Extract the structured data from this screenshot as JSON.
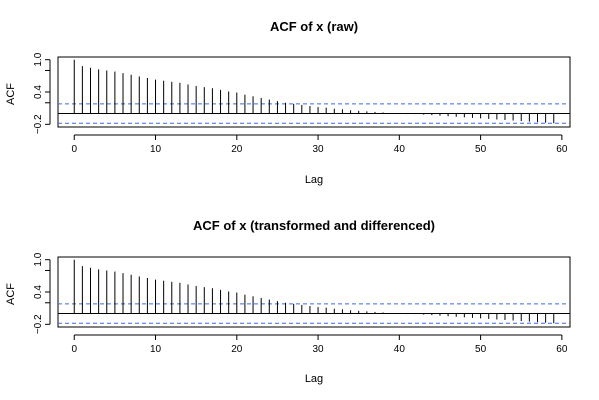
{
  "chart_data": [
    {
      "type": "bar",
      "title": "ACF of x (raw)",
      "xlabel": "Lag",
      "ylabel": "ACF",
      "xlim": [
        -2,
        61
      ],
      "ylim": [
        -0.25,
        1.05
      ],
      "x_ticks": [
        0,
        10,
        20,
        30,
        40,
        50,
        60
      ],
      "y_ticks": [
        -0.2,
        0.4,
        1.0
      ],
      "y_tick_labels": [
        "−0.2",
        "0.4",
        "1.0"
      ],
      "y_minor_ticks": [
        0.2,
        0.8
      ],
      "ci": 0.18,
      "ci_color": "#4169e1",
      "grid": false,
      "x": [
        0,
        1,
        2,
        3,
        4,
        5,
        6,
        7,
        8,
        9,
        10,
        11,
        12,
        13,
        14,
        15,
        16,
        17,
        18,
        19,
        20,
        21,
        22,
        23,
        24,
        25,
        26,
        27,
        28,
        29,
        30,
        31,
        32,
        33,
        34,
        35,
        36,
        37,
        38,
        39,
        40,
        41,
        42,
        43,
        44,
        45,
        46,
        47,
        48,
        49,
        50,
        51,
        52,
        53,
        54,
        55,
        56,
        57,
        58,
        59
      ],
      "values": [
        1.0,
        0.88,
        0.85,
        0.82,
        0.8,
        0.78,
        0.75,
        0.72,
        0.69,
        0.66,
        0.63,
        0.61,
        0.59,
        0.57,
        0.54,
        0.51,
        0.49,
        0.47,
        0.44,
        0.41,
        0.39,
        0.35,
        0.32,
        0.29,
        0.26,
        0.23,
        0.2,
        0.18,
        0.16,
        0.14,
        0.12,
        0.11,
        0.09,
        0.08,
        0.06,
        0.05,
        0.04,
        0.03,
        0.02,
        0.01,
        0.0,
        -0.01,
        -0.01,
        -0.02,
        -0.03,
        -0.04,
        -0.05,
        -0.06,
        -0.07,
        -0.08,
        -0.09,
        -0.1,
        -0.11,
        -0.12,
        -0.13,
        -0.14,
        -0.15,
        -0.16,
        -0.17,
        -0.18
      ]
    },
    {
      "type": "bar",
      "title": "ACF of x (transformed and differenced)",
      "xlabel": "Lag",
      "ylabel": "ACF",
      "xlim": [
        -2,
        61
      ],
      "ylim": [
        -0.25,
        1.05
      ],
      "x_ticks": [
        0,
        10,
        20,
        30,
        40,
        50,
        60
      ],
      "y_ticks": [
        -0.2,
        0.4,
        1.0
      ],
      "y_tick_labels": [
        "−0.2",
        "0.4",
        "1.0"
      ],
      "y_minor_ticks": [
        0.2,
        0.8
      ],
      "ci": 0.18,
      "ci_color": "#4169e1",
      "grid": false,
      "x": [
        0,
        1,
        2,
        3,
        4,
        5,
        6,
        7,
        8,
        9,
        10,
        11,
        12,
        13,
        14,
        15,
        16,
        17,
        18,
        19,
        20,
        21,
        22,
        23,
        24,
        25,
        26,
        27,
        28,
        29,
        30,
        31,
        32,
        33,
        34,
        35,
        36,
        37,
        38,
        39,
        40,
        41,
        42,
        43,
        44,
        45,
        46,
        47,
        48,
        49,
        50,
        51,
        52,
        53,
        54,
        55,
        56,
        57,
        58,
        59
      ],
      "values": [
        1.0,
        0.88,
        0.85,
        0.82,
        0.8,
        0.78,
        0.75,
        0.72,
        0.69,
        0.66,
        0.63,
        0.61,
        0.59,
        0.57,
        0.54,
        0.51,
        0.49,
        0.47,
        0.44,
        0.41,
        0.39,
        0.35,
        0.32,
        0.29,
        0.26,
        0.23,
        0.2,
        0.18,
        0.16,
        0.14,
        0.12,
        0.11,
        0.09,
        0.08,
        0.06,
        0.05,
        0.04,
        0.03,
        0.02,
        0.01,
        0.0,
        -0.01,
        -0.01,
        -0.02,
        -0.03,
        -0.04,
        -0.05,
        -0.06,
        -0.07,
        -0.08,
        -0.09,
        -0.1,
        -0.11,
        -0.12,
        -0.13,
        -0.14,
        -0.15,
        -0.16,
        -0.17,
        -0.18
      ]
    }
  ]
}
